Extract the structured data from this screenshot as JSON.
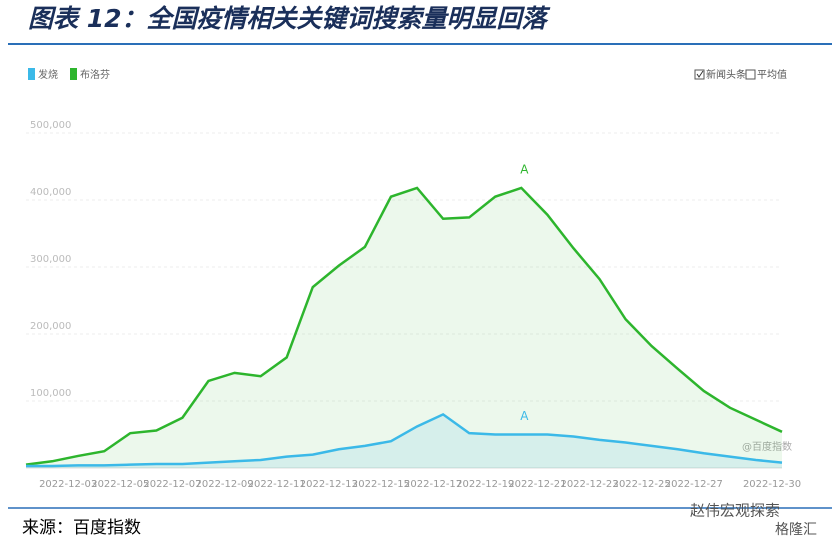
{
  "header": {
    "title": "图表 12：全国疫情相关关键词搜索量明显回落"
  },
  "chart_data": {
    "type": "line",
    "categories": [
      null,
      null,
      "2022-12-03",
      null,
      "2022-12-05",
      null,
      "2022-12-07",
      null,
      "2022-12-09",
      null,
      "2022-12-11",
      null,
      "2022-12-13",
      null,
      "2022-12-15",
      null,
      "2022-12-17",
      null,
      "2022-12-19",
      null,
      "2022-12-21",
      null,
      "2022-12-23",
      null,
      "2022-12-25",
      null,
      "2022-12-27",
      null,
      null,
      "2022-12-30"
    ],
    "series": [
      {
        "name": "发烧",
        "color": "#3bb9e8",
        "values": [
          3000,
          3000,
          4000,
          4000,
          5000,
          6000,
          6000,
          8000,
          10000,
          12000,
          17000,
          20000,
          28000,
          33000,
          40000,
          62000,
          80000,
          52000,
          50000,
          50000,
          50000,
          47000,
          42000,
          38000,
          33000,
          28000,
          22000,
          17000,
          12000,
          8000
        ]
      },
      {
        "name": "布洛芬",
        "color": "#2db52d",
        "values": [
          5000,
          10000,
          18000,
          25000,
          52000,
          56000,
          75000,
          130000,
          142000,
          137000,
          165000,
          270000,
          302000,
          330000,
          405000,
          418000,
          372000,
          374000,
          405000,
          418000,
          378000,
          328000,
          282000,
          222000,
          182000,
          148000,
          115000,
          90000,
          72000,
          54000
        ]
      }
    ],
    "ylim": [
      0,
      500000
    ],
    "yticks": [
      {
        "value": 100000,
        "label": "100,000"
      },
      {
        "value": 200000,
        "label": "200,000"
      },
      {
        "value": 300000,
        "label": "300,000"
      },
      {
        "value": 400000,
        "label": "400,000"
      },
      {
        "value": 500000,
        "label": "500,000"
      }
    ],
    "grid": true,
    "annotations": [
      {
        "label": "A",
        "series": 1,
        "index": 19
      },
      {
        "label": "A",
        "series": 0,
        "index": 19
      }
    ],
    "options": [
      "新闻头条",
      "平均值"
    ],
    "watermark": "@百度指数"
  },
  "footer": {
    "source": "来源：百度指数",
    "brand": "赵伟宏观探索",
    "brand2": "格隆汇"
  }
}
